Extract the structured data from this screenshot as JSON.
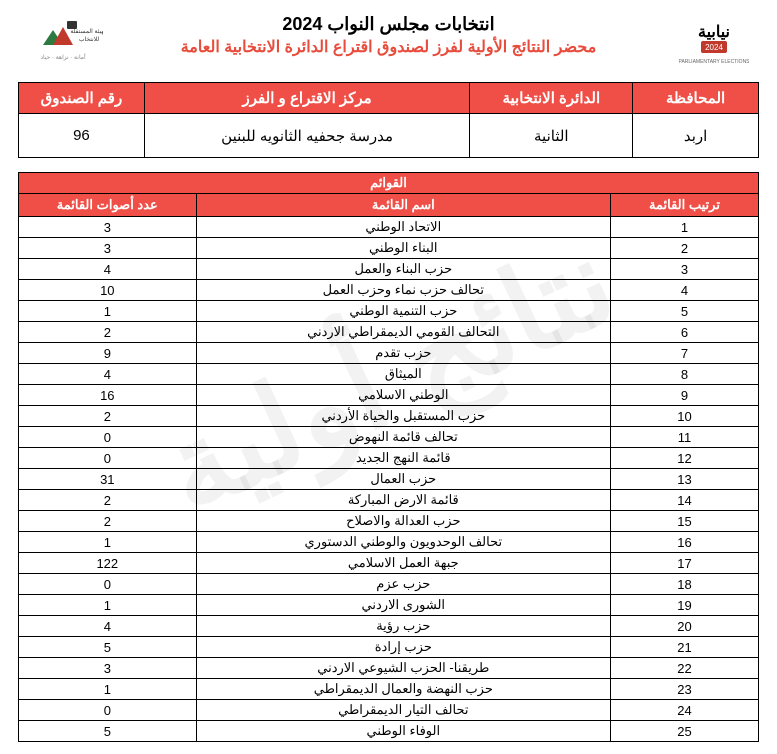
{
  "header": {
    "title1": "انتخابات مجلس النواب 2024",
    "title2": "محضر النتائج الأولية لفرز لصندوق اقتراع الدائرة الانتخابية العامة"
  },
  "info_headers": {
    "governorate": "المحافظة",
    "district": "الدائرة الانتخابية",
    "center": "مركز الاقتراع و الفرز",
    "box": "رقم الصندوق"
  },
  "info_values": {
    "governorate": "اربد",
    "district": "الثانية",
    "center": "مدرسة جحفيه الثانويه للبنين",
    "box": "96"
  },
  "lists_section_title": "القوائم",
  "lists_headers": {
    "rank": "ترتيب القائمة",
    "name": "اسم القائمة",
    "votes": "عدد أصوات القائمة"
  },
  "lists": [
    {
      "rank": "1",
      "name": "الاتحاد الوطني",
      "votes": "3"
    },
    {
      "rank": "2",
      "name": "البناء الوطني",
      "votes": "3"
    },
    {
      "rank": "3",
      "name": "حزب البناء والعمل",
      "votes": "4"
    },
    {
      "rank": "4",
      "name": "تحالف حزب نماء وحزب العمل",
      "votes": "10"
    },
    {
      "rank": "5",
      "name": "حزب التنمية الوطني",
      "votes": "1"
    },
    {
      "rank": "6",
      "name": "التحالف القومي الديمقراطي الاردني",
      "votes": "2"
    },
    {
      "rank": "7",
      "name": "حزب تقدم",
      "votes": "9"
    },
    {
      "rank": "8",
      "name": "الميثاق",
      "votes": "4"
    },
    {
      "rank": "9",
      "name": "الوطني الاسلامي",
      "votes": "16"
    },
    {
      "rank": "10",
      "name": "حزب المستقبل والحياة الأردني",
      "votes": "2"
    },
    {
      "rank": "11",
      "name": "تحالف قائمة النهوض",
      "votes": "0"
    },
    {
      "rank": "12",
      "name": "قائمة النهج الجديد",
      "votes": "0"
    },
    {
      "rank": "13",
      "name": "حزب العمال",
      "votes": "31"
    },
    {
      "rank": "14",
      "name": "قائمة الارض المباركة",
      "votes": "2"
    },
    {
      "rank": "15",
      "name": "حزب العدالة والاصلاح",
      "votes": "2"
    },
    {
      "rank": "16",
      "name": "تحالف الوحدويون والوطني الدستوري",
      "votes": "1"
    },
    {
      "rank": "17",
      "name": "جبهة العمل الاسلامي",
      "votes": "122"
    },
    {
      "rank": "18",
      "name": "حزب عزم",
      "votes": "0"
    },
    {
      "rank": "19",
      "name": "الشورى الاردني",
      "votes": "1"
    },
    {
      "rank": "20",
      "name": "حزب رؤية",
      "votes": "4"
    },
    {
      "rank": "21",
      "name": "حزب إرادة",
      "votes": "5"
    },
    {
      "rank": "22",
      "name": "طريقنا- الحزب الشيوعي الاردني",
      "votes": "3"
    },
    {
      "rank": "23",
      "name": "حزب النهضة والعمال الديمقراطي",
      "votes": "1"
    },
    {
      "rank": "24",
      "name": "تحالف التيار الديمقراطي",
      "votes": "0"
    },
    {
      "rank": "25",
      "name": "الوفاء الوطني",
      "votes": "5"
    }
  ],
  "colors": {
    "header_bg": "#ef4f47",
    "header_fg": "#ffffff",
    "title2_color": "#e74c3c",
    "border": "#000000"
  }
}
